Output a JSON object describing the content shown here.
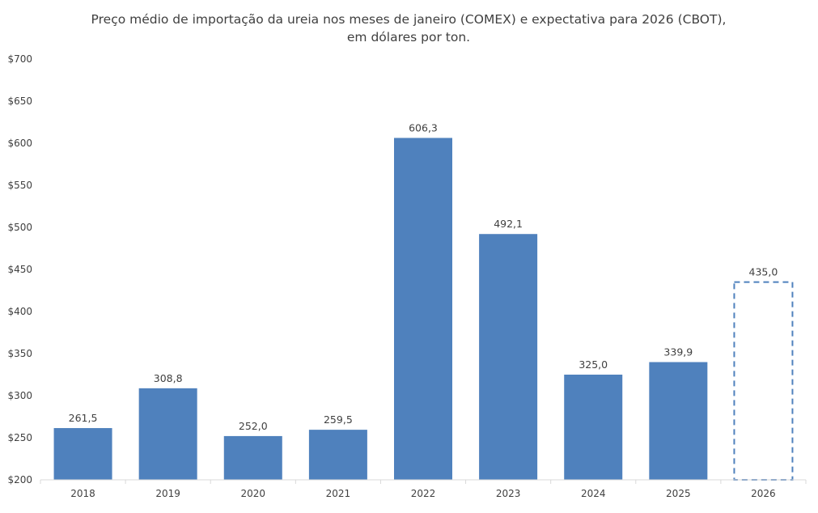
{
  "chart_data": {
    "type": "bar",
    "title": [
      "Preço médio de importação da ureia nos meses de janeiro (COMEX) e expectativa para 2026 (CBOT),",
      "em dólares por ton."
    ],
    "categories": [
      "2018",
      "2019",
      "2020",
      "2021",
      "2022",
      "2023",
      "2024",
      "2025",
      "2026"
    ],
    "values": [
      261.5,
      308.8,
      252.0,
      259.5,
      606.3,
      492.1,
      325.0,
      339.9,
      435.0
    ],
    "data_labels": [
      "261,5",
      "308,8",
      "252,0",
      "259,5",
      "606,3",
      "492,1",
      "325,0",
      "339,9",
      "435,0"
    ],
    "projected": [
      false,
      false,
      false,
      false,
      false,
      false,
      false,
      false,
      true
    ],
    "ylim": [
      200,
      700
    ],
    "yticks": [
      200,
      250,
      300,
      350,
      400,
      450,
      500,
      550,
      600,
      650,
      700
    ],
    "ytick_labels": [
      "$200",
      "$250",
      "$300",
      "$350",
      "$400",
      "$450",
      "$500",
      "$550",
      "$600",
      "$650",
      "$700"
    ],
    "xlabel": "",
    "ylabel": "",
    "grid": false,
    "legend": "none",
    "colors": {
      "bar": "#4F81BD",
      "projected_outline": "#4F81BD",
      "axis": "#D9D9D9",
      "text": "#404040"
    }
  }
}
